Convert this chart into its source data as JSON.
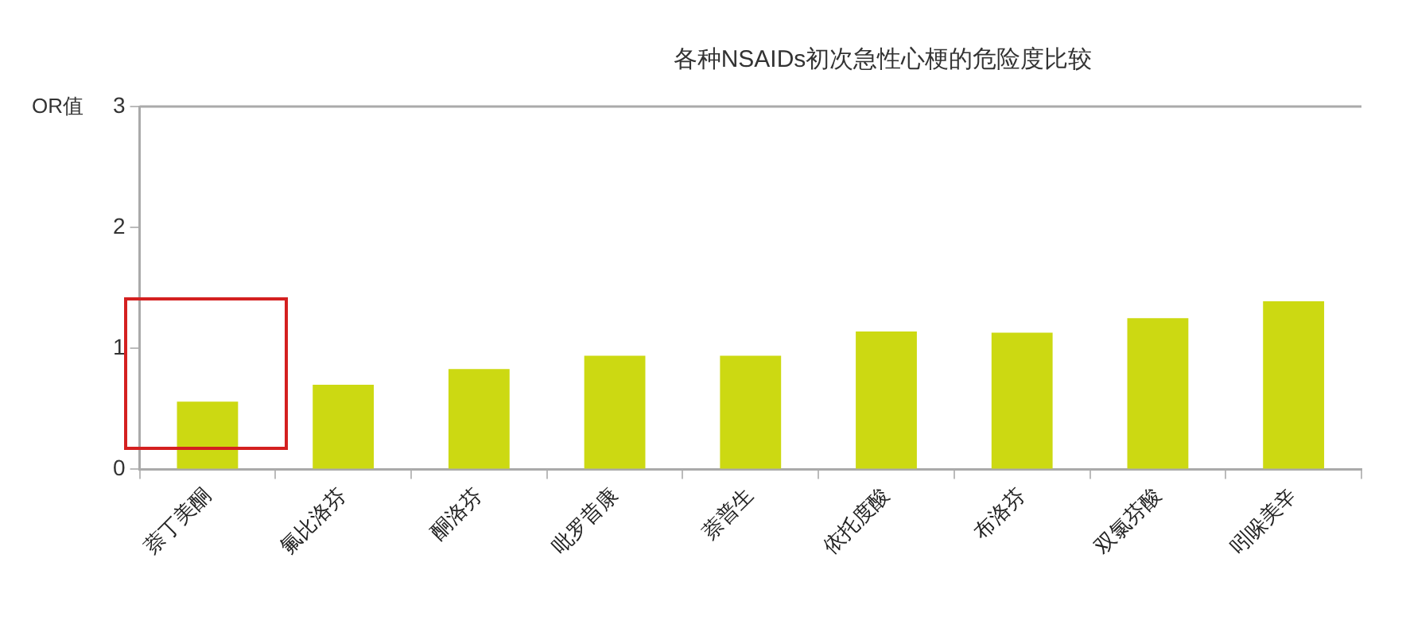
{
  "chart_data": {
    "type": "bar",
    "title": "各种NSAIDs初次急性心梗的危险度比较",
    "ylabel": "OR值",
    "categories": [
      "萘丁美酮",
      "氟比洛芬",
      "酮洛芬",
      "吡罗昔康",
      "萘普生",
      "依托度酸",
      "布洛芬",
      "双氯芬酸",
      "吲哚美辛"
    ],
    "values": [
      0.56,
      0.7,
      0.83,
      0.94,
      0.94,
      1.14,
      1.13,
      1.25,
      1.39
    ],
    "color": "#ccd912",
    "ylim": [
      0,
      3
    ],
    "yticks": [
      0,
      1,
      2,
      3
    ],
    "grid": false,
    "legend": false
  }
}
